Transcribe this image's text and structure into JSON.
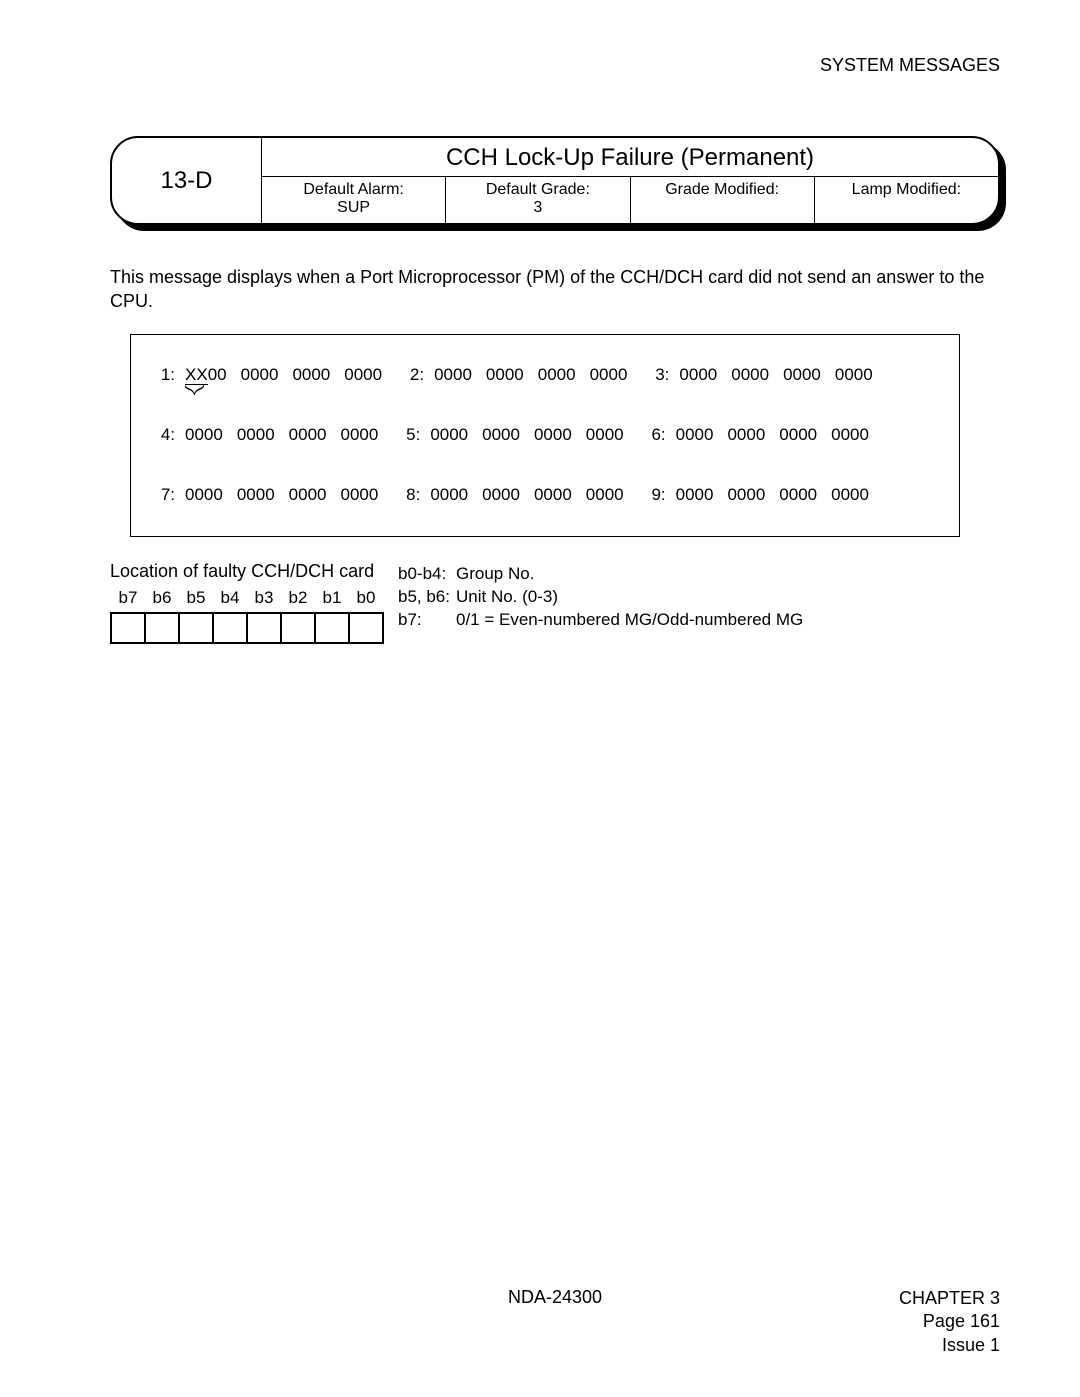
{
  "header": {
    "section": "SYSTEM MESSAGES"
  },
  "message": {
    "code": "13-D",
    "title": "CCH Lock-Up Failure (Permanent)",
    "fields": [
      {
        "label": "Default Alarm:",
        "value": "SUP"
      },
      {
        "label": "Default Grade:",
        "value": "3"
      },
      {
        "label": "Grade Modified:",
        "value": ""
      },
      {
        "label": "Lamp Modified:",
        "value": ""
      }
    ]
  },
  "description": "This message displays when a Port Microprocessor (PM) of the CCH/DCH card did not send an answer to the CPU.",
  "data": {
    "rows": [
      [
        {
          "n": "1:",
          "words": [
            "XX00",
            "0000",
            "0000",
            "0000"
          ],
          "markFirst": true
        },
        {
          "n": "2:",
          "words": [
            "0000",
            "0000",
            "0000",
            "0000"
          ]
        },
        {
          "n": "3:",
          "words": [
            "0000",
            "0000",
            "0000",
            "0000"
          ]
        }
      ],
      [
        {
          "n": "4:",
          "words": [
            "0000",
            "0000",
            "0000",
            "0000"
          ]
        },
        {
          "n": "5:",
          "words": [
            "0000",
            "0000",
            "0000",
            "0000"
          ]
        },
        {
          "n": "6:",
          "words": [
            "0000",
            "0000",
            "0000",
            "0000"
          ]
        }
      ],
      [
        {
          "n": "7:",
          "words": [
            "0000",
            "0000",
            "0000",
            "0000"
          ]
        },
        {
          "n": "8:",
          "words": [
            "0000",
            "0000",
            "0000",
            "0000"
          ]
        },
        {
          "n": "9:",
          "words": [
            "0000",
            "0000",
            "0000",
            "0000"
          ]
        }
      ]
    ]
  },
  "location": {
    "title": "Location of faulty CCH/DCH card",
    "bits": [
      "b7",
      "b6",
      "b5",
      "b4",
      "b3",
      "b2",
      "b1",
      "b0"
    ],
    "legend": [
      {
        "k": "b0-b4:",
        "v": "Group No."
      },
      {
        "k": "b5, b6:",
        "v": "Unit No. (0-3)"
      },
      {
        "k": "b7:",
        "v": "0/1 = Even-numbered MG/Odd-numbered MG"
      }
    ]
  },
  "footer": {
    "center": "NDA-24300",
    "right": [
      "CHAPTER 3",
      "Page 161",
      "Issue 1"
    ]
  }
}
